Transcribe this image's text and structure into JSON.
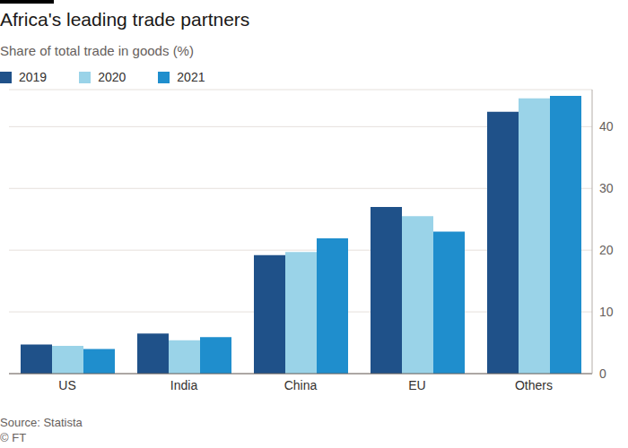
{
  "chart_data": {
    "type": "bar",
    "title": "Africa's leading trade partners",
    "subtitle": "Share of total trade in goods (%)",
    "source": "Source: Statista",
    "credit": "© FT",
    "categories": [
      "US",
      "India",
      "China",
      "EU",
      "Others"
    ],
    "series": [
      {
        "name": "2019",
        "color": "#1f5189",
        "values": [
          4.7,
          6.5,
          19.2,
          27.0,
          42.4
        ]
      },
      {
        "name": "2020",
        "color": "#9ad3e8",
        "values": [
          4.5,
          5.4,
          19.7,
          25.5,
          44.6
        ]
      },
      {
        "name": "2021",
        "color": "#1f8ecd",
        "values": [
          4.0,
          5.9,
          21.9,
          23.0,
          45.0
        ]
      }
    ],
    "ylim": [
      0,
      46
    ],
    "yticks": [
      0,
      10,
      20,
      30,
      40
    ],
    "grid": true,
    "legend": "top"
  }
}
